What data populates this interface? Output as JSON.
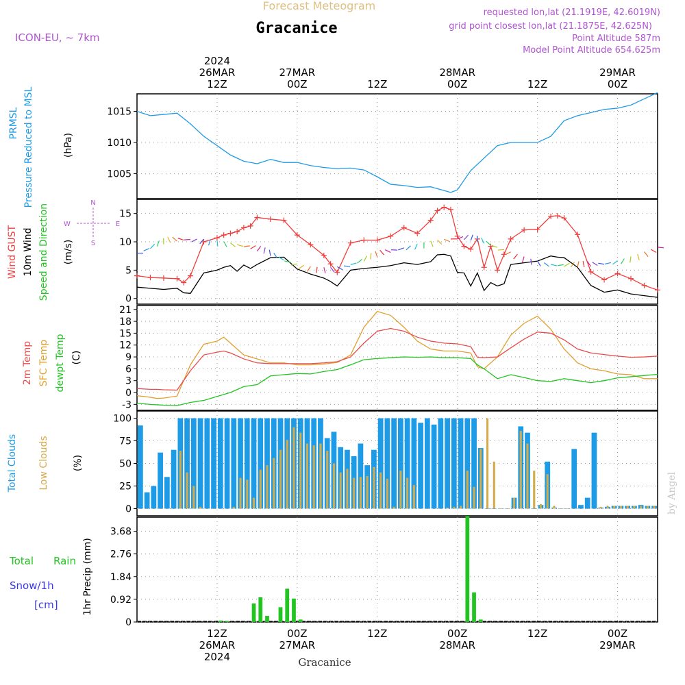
{
  "header": {
    "title_top": "Forecast Meteogram",
    "location": "Gracanice",
    "model": "ICON-EU, ~ 7km",
    "requested": "requested lon,lat (21.1919E, 42.6019N)",
    "gridpoint": "grid point closest lon,lat (21.1875E, 42.625N)",
    "point_alt": "Point Altitude 587m",
    "model_alt": "Model Point Altitude 654.625m",
    "footer_location": "Gracanice",
    "watermark": "by Angel"
  },
  "time_axis": {
    "top": [
      {
        "h": 12,
        "lines": [
          "2024",
          "26MAR",
          "12Z"
        ]
      },
      {
        "h": 24,
        "lines": [
          "27MAR",
          "00Z"
        ]
      },
      {
        "h": 36,
        "lines": [
          "12Z"
        ]
      },
      {
        "h": 48,
        "lines": [
          "28MAR",
          "00Z"
        ]
      },
      {
        "h": 60,
        "lines": [
          "12Z"
        ]
      },
      {
        "h": 72,
        "lines": [
          "29MAR",
          "00Z"
        ]
      }
    ],
    "bottom": [
      {
        "h": 12,
        "lines": [
          "12Z",
          "26MAR",
          "2024"
        ]
      },
      {
        "h": 24,
        "lines": [
          "00Z",
          "27MAR"
        ]
      },
      {
        "h": 36,
        "lines": [
          "12Z"
        ]
      },
      {
        "h": 48,
        "lines": [
          "00Z",
          "28MAR"
        ]
      },
      {
        "h": 60,
        "lines": [
          "12Z"
        ]
      },
      {
        "h": 72,
        "lines": [
          "00Z",
          "29MAR"
        ]
      }
    ]
  },
  "panel_labels": {
    "pressure": [
      "PRMSL",
      "Pressure Reduced to MSL",
      "(hPa)"
    ],
    "wind": [
      "Wind GUST",
      "10m Wind",
      "Speed and Direction",
      "(m/s)"
    ],
    "compass": {
      "n": "N",
      "s": "S",
      "w": "W",
      "e": "E"
    },
    "temp": [
      "2m Temp",
      "SFC Temp",
      "dewpt Temp",
      "(C)"
    ],
    "clouds": [
      "Total Clouds",
      "Low Clouds",
      "(%)"
    ],
    "precip": [
      "Total",
      "Rain",
      "Snow/1h",
      "[cm]",
      "1hr Precip (mm)"
    ]
  },
  "colors": {
    "pressure": "#1e9be6",
    "gust": "#f03c3c",
    "wind": "#000000",
    "temp2m": "#e84a4a",
    "sfc": "#e0a030",
    "dewpt": "#22c422",
    "total_clouds": "#1e9be6",
    "low_clouds": "#d4aa4a",
    "rain": "#22c422",
    "label_purple": "#b055d0",
    "label_green": "#22c422",
    "label_blue": "#3a3ae8",
    "title_tan": "#e0c080"
  },
  "chart_data": [
    {
      "type": "line",
      "name": "pressure",
      "ylabel": "(hPa)",
      "ylim": [
        1001,
        1017.8
      ],
      "yticks": [
        1005,
        1010,
        1015
      ],
      "x": [
        0,
        2,
        4,
        6,
        8,
        10,
        12,
        14,
        16,
        18,
        20,
        22,
        24,
        26,
        28,
        30,
        32,
        34,
        36,
        38,
        40,
        42,
        44,
        46,
        47,
        48,
        50,
        52,
        54,
        56,
        58,
        60,
        62,
        64,
        66,
        68,
        70,
        72,
        74,
        76,
        78
      ],
      "series": [
        {
          "name": "PRMSL",
          "values": [
            1015,
            1014.3,
            1014.5,
            1014.7,
            1013,
            1011,
            1009.5,
            1008,
            1007,
            1006.6,
            1007.3,
            1006.8,
            1006.8,
            1006.3,
            1006,
            1005.8,
            1005.9,
            1005.6,
            1004.5,
            1003.3,
            1003.1,
            1002.8,
            1002.9,
            1002.3,
            1002.0,
            1002.4,
            1005.5,
            1007.5,
            1009.5,
            1010,
            1010,
            1010,
            1011,
            1013.5,
            1014.3,
            1014.8,
            1015.3,
            1015.5,
            1016,
            1017,
            1018
          ]
        }
      ]
    },
    {
      "type": "line",
      "name": "wind",
      "ylabel": "(m/s)",
      "ylim": [
        -1,
        17.5
      ],
      "yticks": [
        0,
        5,
        10,
        15
      ],
      "x": [
        0,
        2,
        4,
        6,
        7,
        8,
        10,
        12,
        13,
        14,
        15,
        16,
        17,
        18,
        20,
        22,
        24,
        26,
        28,
        29,
        30,
        32,
        34,
        36,
        38,
        40,
        42,
        44,
        45,
        46,
        47,
        48,
        49,
        50,
        51,
        52,
        53,
        54,
        55,
        56,
        58,
        60,
        62,
        63,
        64,
        66,
        68,
        70,
        72,
        74,
        76,
        78
      ],
      "series": [
        {
          "name": "Wind GUST",
          "values": [
            4,
            3.7,
            3.6,
            3.5,
            2.8,
            4.0,
            10.0,
            10.7,
            11.2,
            11.5,
            11.8,
            12.5,
            12.8,
            14.3,
            14.0,
            13.8,
            11.2,
            9.5,
            7.6,
            6.1,
            4.6,
            9.8,
            10.3,
            10.3,
            11.0,
            12.5,
            11.5,
            13.8,
            15.5,
            16.1,
            15.7,
            11.0,
            9.2,
            8.7,
            10.5,
            5.5,
            9.2,
            5.0,
            7.8,
            10.5,
            12.1,
            12.2,
            14.5,
            14.6,
            14.2,
            11.3,
            4.7,
            3.3,
            4.4,
            3.5,
            2.3,
            1.5
          ]
        },
        {
          "name": "10m Wind",
          "values": [
            2,
            1.8,
            1.6,
            1.8,
            1.0,
            0.9,
            4.5,
            5.0,
            5.5,
            5.8,
            4.8,
            5.9,
            5.3,
            6.0,
            7.2,
            7.3,
            5.2,
            4.3,
            3.6,
            3.0,
            2.2,
            5.0,
            5.3,
            5.5,
            5.8,
            6.3,
            6.0,
            6.5,
            7.7,
            7.8,
            7.5,
            4.6,
            4.5,
            2.2,
            4.5,
            1.4,
            2.8,
            2.2,
            2.6,
            6.0,
            6.3,
            6.6,
            7.5,
            7.3,
            7.2,
            5.5,
            2.3,
            1.1,
            1.5,
            0.8,
            0.5,
            0.2
          ]
        }
      ]
    },
    {
      "type": "line",
      "name": "temperature",
      "ylabel": "(C)",
      "ylim": [
        -4.5,
        22
      ],
      "yticks": [
        -3,
        0,
        3,
        6,
        9,
        12,
        15,
        18,
        21
      ],
      "x": [
        0,
        2,
        3,
        4,
        6,
        8,
        10,
        12,
        13,
        14,
        16,
        18,
        20,
        22,
        24,
        26,
        28,
        30,
        32,
        34,
        36,
        38,
        40,
        42,
        44,
        46,
        48,
        50,
        51,
        52,
        54,
        56,
        58,
        60,
        62,
        64,
        66,
        68,
        70,
        72,
        74,
        76,
        78
      ],
      "series": [
        {
          "name": "2m Temp",
          "values": [
            1.0,
            0.8,
            0.8,
            0.7,
            0.6,
            5.5,
            9.5,
            10.2,
            10.5,
            10.0,
            8.5,
            7.5,
            7.3,
            7.3,
            7.3,
            7.3,
            7.5,
            7.8,
            9.0,
            12.5,
            15.5,
            16.2,
            15.5,
            14.0,
            13.0,
            12.5,
            12.3,
            11.6,
            8.9,
            8.8,
            9.0,
            11.3,
            13.5,
            15.3,
            15.0,
            13.3,
            11.0,
            10.0,
            9.6,
            9.2,
            8.9,
            9.0,
            9.2
          ]
        },
        {
          "name": "SFC Temp",
          "values": [
            -0.8,
            -1.2,
            -1.5,
            -1.4,
            -0.9,
            7.0,
            12.2,
            13.0,
            14.0,
            12.5,
            9.5,
            8.5,
            7.5,
            7.5,
            7.0,
            7.0,
            7.2,
            7.6,
            9.5,
            16.5,
            20.5,
            19.5,
            16.5,
            13.0,
            11.0,
            10.5,
            10.5,
            10.0,
            6.5,
            6.0,
            9.0,
            14.5,
            17.5,
            19.3,
            16.0,
            11.0,
            7.5,
            6.0,
            5.5,
            4.7,
            4.5,
            3.5,
            3.5
          ]
        },
        {
          "name": "dewpt Temp",
          "values": [
            -2.7,
            -3.0,
            -3.1,
            -3.2,
            -3.3,
            -2.5,
            -2.0,
            -1.0,
            -0.5,
            0.0,
            1.5,
            2.0,
            4.2,
            4.5,
            4.8,
            4.7,
            5.3,
            5.8,
            7.0,
            8.3,
            8.6,
            8.8,
            9.0,
            8.9,
            9.0,
            8.8,
            8.8,
            8.6,
            7.0,
            6.0,
            3.5,
            4.5,
            3.8,
            3.0,
            2.8,
            3.5,
            3.0,
            2.5,
            3.0,
            3.7,
            4.0,
            4.3,
            4.6
          ]
        }
      ]
    },
    {
      "type": "bar",
      "name": "clouds",
      "ylabel": "(%)",
      "ylim": [
        -8,
        108
      ],
      "yticks": [
        0,
        25,
        50,
        75,
        100
      ],
      "categories": [
        0,
        1,
        2,
        3,
        4,
        5,
        6,
        7,
        8,
        9,
        10,
        11,
        12,
        13,
        14,
        15,
        16,
        17,
        18,
        19,
        20,
        21,
        22,
        23,
        24,
        25,
        26,
        27,
        28,
        29,
        30,
        31,
        32,
        33,
        34,
        35,
        36,
        37,
        38,
        39,
        40,
        41,
        42,
        43,
        44,
        45,
        46,
        47,
        48,
        49,
        50,
        51,
        52,
        53,
        54,
        55,
        56,
        57,
        58,
        59,
        60,
        61,
        62,
        63,
        64,
        65,
        66,
        67,
        68,
        69,
        70,
        71,
        72,
        73,
        74,
        75,
        76,
        77
      ],
      "series": [
        {
          "name": "Total Clouds",
          "values": [
            92,
            18,
            25,
            62,
            35,
            65,
            100,
            100,
            100,
            100,
            100,
            100,
            100,
            100,
            100,
            100,
            100,
            100,
            100,
            100,
            100,
            100,
            100,
            100,
            100,
            100,
            100,
            100,
            78,
            85,
            68,
            65,
            58,
            72,
            48,
            65,
            100,
            100,
            100,
            100,
            100,
            100,
            95,
            100,
            93,
            100,
            100,
            100,
            100,
            100,
            100,
            67,
            0,
            0,
            0,
            0,
            12,
            91,
            84,
            0,
            4,
            52,
            1,
            0,
            0,
            66,
            4,
            12,
            84,
            1,
            2,
            3,
            3,
            3,
            3,
            4,
            3,
            3
          ]
        },
        {
          "name": "Low Clouds",
          "values": [
            0,
            0,
            0,
            0,
            0,
            0,
            64,
            40,
            25,
            2,
            0,
            0,
            0,
            0,
            2,
            34,
            32,
            12,
            43,
            48,
            56,
            65,
            76,
            90,
            84,
            72,
            70,
            72,
            64,
            50,
            40,
            44,
            34,
            35,
            36,
            46,
            40,
            33,
            2,
            42,
            34,
            26,
            0,
            0,
            0,
            0,
            1,
            2,
            3,
            42,
            24,
            66,
            100,
            52,
            0,
            0,
            12,
            86,
            72,
            42,
            5,
            38,
            3,
            0,
            0,
            0,
            0,
            0,
            0,
            2,
            3,
            3,
            3,
            3,
            3,
            3,
            3,
            3
          ]
        }
      ]
    },
    {
      "type": "bar",
      "name": "precip",
      "ylabel": "1hr Precip (mm)",
      "ylim": [
        0,
        4.25
      ],
      "yticks": [
        0,
        0.92,
        1.84,
        2.76,
        3.68
      ],
      "categories": [
        12,
        13,
        17,
        18,
        19,
        21,
        22,
        23,
        24,
        49,
        50,
        51
      ],
      "series": [
        {
          "name": "Total Rain",
          "values": [
            0.06,
            0.04,
            0.75,
            1.0,
            0.25,
            0.6,
            1.35,
            0.95,
            0.1,
            4.3,
            1.2,
            0.1
          ]
        }
      ]
    }
  ]
}
